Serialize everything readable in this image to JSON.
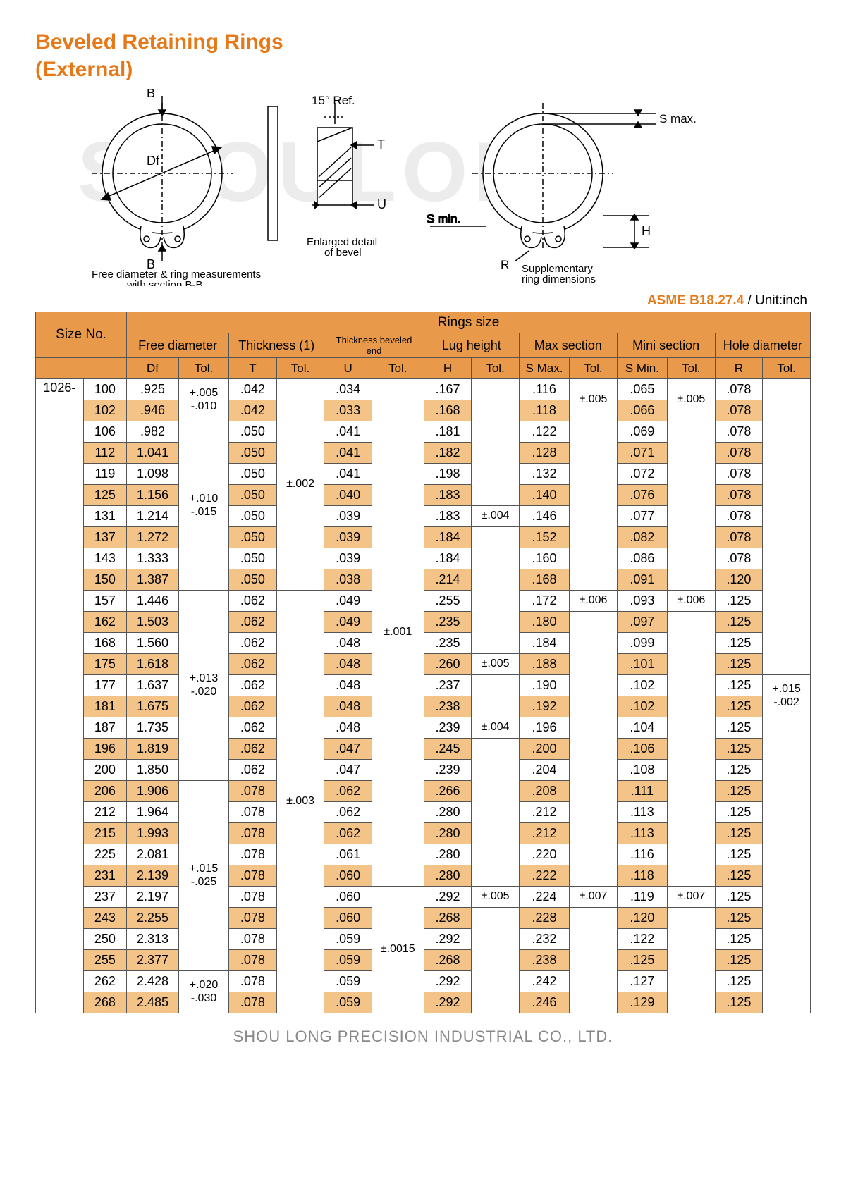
{
  "title_line1": "Beveled Retaining Rings",
  "title_line2": "(External)",
  "watermark": "SHOULONG",
  "spec_code": "ASME B18.27.4",
  "spec_unit": " / Unit:inch",
  "diagram": {
    "label_B_top": "B",
    "label_B_bot": "B",
    "label_Df": "Df",
    "label_15ref": "15° Ref.",
    "label_T": "T",
    "label_U": "U",
    "label_Smax": "S max.",
    "label_Smin": "S min.",
    "label_H": "H",
    "label_R": "R",
    "caption_left1": "Free diameter & ring measurements",
    "caption_left2": "with section B-B.",
    "caption_mid1": "Enlarged detail",
    "caption_mid2": "of bevel",
    "caption_right1": "Supplementary",
    "caption_right2": "ring dimensions"
  },
  "headers": {
    "size_no": "Size No.",
    "rings_size": "Rings size",
    "free_diameter": "Free diameter",
    "thickness1": "Thickness (1)",
    "thickness_beveled": "Thickness beveled end",
    "lug_height": "Lug height",
    "max_section": "Max section",
    "mini_section": "Mini section",
    "hole_diameter": "Hole diameter",
    "Df": "Df",
    "T": "T",
    "U": "U",
    "H": "H",
    "Smax": "S Max.",
    "Smin": "S Min.",
    "R": "R",
    "Tol": "Tol."
  },
  "size_prefix": "1026-",
  "rows": [
    {
      "n": "100",
      "df": ".925",
      "t": ".042",
      "u": ".034",
      "h": ".167",
      "smax": ".116",
      "smin": ".065",
      "r": ".078",
      "alt": false
    },
    {
      "n": "102",
      "df": ".946",
      "t": ".042",
      "u": ".033",
      "h": ".168",
      "smax": ".118",
      "smin": ".066",
      "r": ".078",
      "alt": true
    },
    {
      "n": "106",
      "df": ".982",
      "t": ".050",
      "u": ".041",
      "h": ".181",
      "smax": ".122",
      "smin": ".069",
      "r": ".078",
      "alt": false
    },
    {
      "n": "112",
      "df": "1.041",
      "t": ".050",
      "u": ".041",
      "h": ".182",
      "smax": ".128",
      "smin": ".071",
      "r": ".078",
      "alt": true
    },
    {
      "n": "119",
      "df": "1.098",
      "t": ".050",
      "u": ".041",
      "h": ".198",
      "smax": ".132",
      "smin": ".072",
      "r": ".078",
      "alt": false
    },
    {
      "n": "125",
      "df": "1.156",
      "t": ".050",
      "u": ".040",
      "h": ".183",
      "smax": ".140",
      "smin": ".076",
      "r": ".078",
      "alt": true
    },
    {
      "n": "131",
      "df": "1.214",
      "t": ".050",
      "u": ".039",
      "h": ".183",
      "smax": ".146",
      "smin": ".077",
      "r": ".078",
      "alt": false
    },
    {
      "n": "137",
      "df": "1.272",
      "t": ".050",
      "u": ".039",
      "h": ".184",
      "smax": ".152",
      "smin": ".082",
      "r": ".078",
      "alt": true
    },
    {
      "n": "143",
      "df": "1.333",
      "t": ".050",
      "u": ".039",
      "h": ".184",
      "smax": ".160",
      "smin": ".086",
      "r": ".078",
      "alt": false
    },
    {
      "n": "150",
      "df": "1.387",
      "t": ".050",
      "u": ".038",
      "h": ".214",
      "smax": ".168",
      "smin": ".091",
      "r": ".120",
      "alt": true
    },
    {
      "n": "157",
      "df": "1.446",
      "t": ".062",
      "u": ".049",
      "h": ".255",
      "smax": ".172",
      "smin": ".093",
      "r": ".125",
      "alt": false
    },
    {
      "n": "162",
      "df": "1.503",
      "t": ".062",
      "u": ".049",
      "h": ".235",
      "smax": ".180",
      "smin": ".097",
      "r": ".125",
      "alt": true
    },
    {
      "n": "168",
      "df": "1.560",
      "t": ".062",
      "u": ".048",
      "h": ".235",
      "smax": ".184",
      "smin": ".099",
      "r": ".125",
      "alt": false
    },
    {
      "n": "175",
      "df": "1.618",
      "t": ".062",
      "u": ".048",
      "h": ".260",
      "smax": ".188",
      "smin": ".101",
      "r": ".125",
      "alt": true
    },
    {
      "n": "177",
      "df": "1.637",
      "t": ".062",
      "u": ".048",
      "h": ".237",
      "smax": ".190",
      "smin": ".102",
      "r": ".125",
      "alt": false
    },
    {
      "n": "181",
      "df": "1.675",
      "t": ".062",
      "u": ".048",
      "h": ".238",
      "smax": ".192",
      "smin": ".102",
      "r": ".125",
      "alt": true
    },
    {
      "n": "187",
      "df": "1.735",
      "t": ".062",
      "u": ".048",
      "h": ".239",
      "smax": ".196",
      "smin": ".104",
      "r": ".125",
      "alt": false
    },
    {
      "n": "196",
      "df": "1.819",
      "t": ".062",
      "u": ".047",
      "h": ".245",
      "smax": ".200",
      "smin": ".106",
      "r": ".125",
      "alt": true
    },
    {
      "n": "200",
      "df": "1.850",
      "t": ".062",
      "u": ".047",
      "h": ".239",
      "smax": ".204",
      "smin": ".108",
      "r": ".125",
      "alt": false
    },
    {
      "n": "206",
      "df": "1.906",
      "t": ".078",
      "u": ".062",
      "h": ".266",
      "smax": ".208",
      "smin": ".111",
      "r": ".125",
      "alt": true
    },
    {
      "n": "212",
      "df": "1.964",
      "t": ".078",
      "u": ".062",
      "h": ".280",
      "smax": ".212",
      "smin": ".113",
      "r": ".125",
      "alt": false
    },
    {
      "n": "215",
      "df": "1.993",
      "t": ".078",
      "u": ".062",
      "h": ".280",
      "smax": ".212",
      "smin": ".113",
      "r": ".125",
      "alt": true
    },
    {
      "n": "225",
      "df": "2.081",
      "t": ".078",
      "u": ".061",
      "h": ".280",
      "smax": ".220",
      "smin": ".116",
      "r": ".125",
      "alt": false
    },
    {
      "n": "231",
      "df": "2.139",
      "t": ".078",
      "u": ".060",
      "h": ".280",
      "smax": ".222",
      "smin": ".118",
      "r": ".125",
      "alt": true
    },
    {
      "n": "237",
      "df": "2.197",
      "t": ".078",
      "u": ".060",
      "h": ".292",
      "smax": ".224",
      "smin": ".119",
      "r": ".125",
      "alt": false
    },
    {
      "n": "243",
      "df": "2.255",
      "t": ".078",
      "u": ".060",
      "h": ".268",
      "smax": ".228",
      "smin": ".120",
      "r": ".125",
      "alt": true
    },
    {
      "n": "250",
      "df": "2.313",
      "t": ".078",
      "u": ".059",
      "h": ".292",
      "smax": ".232",
      "smin": ".122",
      "r": ".125",
      "alt": false
    },
    {
      "n": "255",
      "df": "2.377",
      "t": ".078",
      "u": ".059",
      "h": ".268",
      "smax": ".238",
      "smin": ".125",
      "r": ".125",
      "alt": true
    },
    {
      "n": "262",
      "df": "2.428",
      "t": ".078",
      "u": ".059",
      "h": ".292",
      "smax": ".242",
      "smin": ".127",
      "r": ".125",
      "alt": false
    },
    {
      "n": "268",
      "df": "2.485",
      "t": ".078",
      "u": ".059",
      "h": ".292",
      "smax": ".246",
      "smin": ".129",
      "r": ".125",
      "alt": true
    }
  ],
  "tol": {
    "df1": "+.005\n-.010",
    "df2": "+.010\n-.015",
    "df3": "+.013\n-.020",
    "df4": "+.015\n-.025",
    "df5": "+.020\n-.030",
    "t1": "±.002",
    "t2": "±.003",
    "u1": "±.001",
    "u2": "±.0015",
    "h1": "±.004",
    "h2": "±.005",
    "h3": "±.004",
    "h4": "±.005",
    "smax1": "±.005",
    "smax2": "±.006",
    "smax3": "±.007",
    "smin1": "±.005",
    "smin2": "±.006",
    "smin3": "±.007",
    "r1": "+.015\n-.002"
  },
  "footer": "SHOU LONG PRECISION INDUSTRIAL CO., LTD."
}
